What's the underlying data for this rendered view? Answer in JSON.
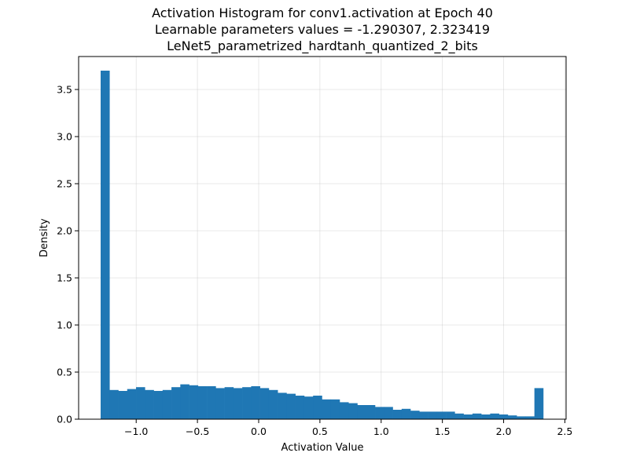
{
  "chart_data": {
    "type": "bar",
    "title_lines": [
      "Activation Histogram for conv1.activation at Epoch 40",
      "Learnable parameters values = -1.290307, 2.323419",
      "LeNet5_parametrized_hardtanh_quantized_2_bits"
    ],
    "xlabel": "Activation Value",
    "ylabel": "Density",
    "xlim": [
      -1.47,
      2.51
    ],
    "ylim": [
      0,
      3.85
    ],
    "xticks": [
      -1.0,
      -0.5,
      0.0,
      0.5,
      1.0,
      1.5,
      2.0,
      2.5
    ],
    "xtick_labels": [
      "−1.0",
      "−0.5",
      "0.0",
      "0.5",
      "1.0",
      "1.5",
      "2.0",
      "2.5"
    ],
    "yticks": [
      0.0,
      0.5,
      1.0,
      1.5,
      2.0,
      2.5,
      3.0,
      3.5
    ],
    "ytick_labels": [
      "0.0",
      "0.5",
      "1.0",
      "1.5",
      "2.0",
      "2.5",
      "3.0",
      "3.5"
    ],
    "grid": true,
    "bar_color": "#1f77b4",
    "bins": {
      "start": -1.290307,
      "end": 2.323419,
      "count": 50
    },
    "values": [
      3.7,
      0.31,
      0.3,
      0.32,
      0.34,
      0.31,
      0.3,
      0.31,
      0.34,
      0.37,
      0.36,
      0.35,
      0.35,
      0.33,
      0.34,
      0.33,
      0.34,
      0.35,
      0.33,
      0.31,
      0.28,
      0.27,
      0.25,
      0.24,
      0.25,
      0.21,
      0.21,
      0.18,
      0.17,
      0.15,
      0.15,
      0.13,
      0.13,
      0.1,
      0.11,
      0.09,
      0.08,
      0.08,
      0.08,
      0.08,
      0.06,
      0.05,
      0.06,
      0.05,
      0.06,
      0.05,
      0.04,
      0.03,
      0.03,
      0.33
    ]
  }
}
